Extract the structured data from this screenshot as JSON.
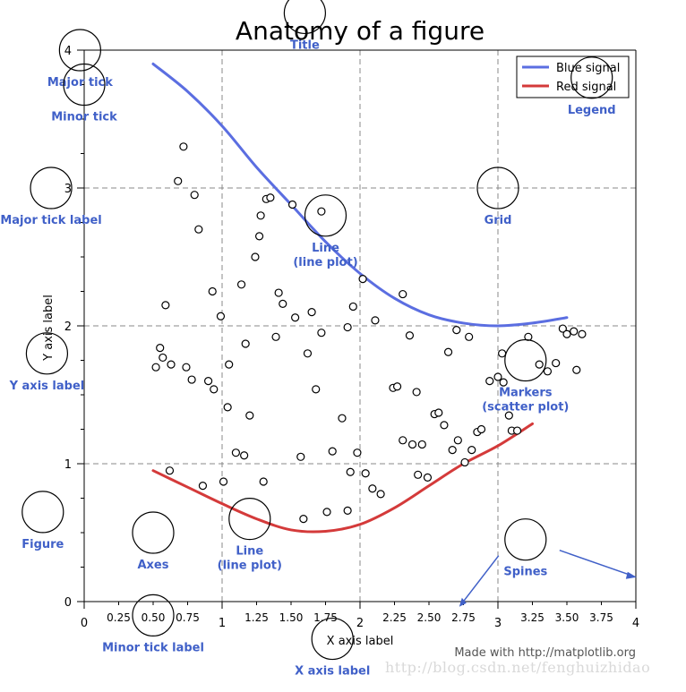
{
  "chart_data": {
    "type": "line",
    "title": "Anatomy of a figure",
    "xlabel": "X axis label",
    "ylabel": "Y axis label",
    "xlim": [
      0,
      4
    ],
    "ylim": [
      0,
      4
    ],
    "grid": true,
    "legend_position": "top-right",
    "major_ticks": [
      0,
      1,
      2,
      3,
      4
    ],
    "minor_ticks": [
      0.25,
      0.5,
      0.75,
      1.25,
      1.5,
      1.75,
      2.25,
      2.5,
      2.75,
      3.25,
      3.5,
      3.75
    ],
    "major_tick_labels": [
      "0",
      "1",
      "2",
      "3",
      "4"
    ],
    "minor_tick_labels": [
      "0.25",
      "0.50",
      "0.75",
      "1.25",
      "1.50",
      "1.75",
      "2.25",
      "2.50",
      "2.75",
      "3.25",
      "3.50",
      "3.75"
    ],
    "series": [
      {
        "name": "Blue signal",
        "kind": "line",
        "color": "#5b6ee1",
        "x": [
          0.5,
          0.75,
          1.0,
          1.25,
          1.5,
          1.75,
          2.0,
          2.25,
          2.5,
          2.75,
          3.0,
          3.25,
          3.5
        ],
        "y": [
          3.9,
          3.7,
          3.45,
          3.15,
          2.88,
          2.61,
          2.38,
          2.2,
          2.08,
          2.02,
          2.0,
          2.02,
          2.06
        ]
      },
      {
        "name": "Red signal",
        "kind": "line",
        "color": "#d43a3a",
        "x": [
          0.5,
          0.75,
          1.0,
          1.25,
          1.5,
          1.75,
          2.0,
          2.25,
          2.5,
          2.75,
          3.0,
          3.25
        ],
        "y": [
          0.95,
          0.83,
          0.71,
          0.6,
          0.52,
          0.51,
          0.56,
          0.68,
          0.84,
          1.0,
          1.13,
          1.29
        ]
      },
      {
        "name": "",
        "kind": "scatter",
        "points": [
          [
            0.72,
            3.3
          ],
          [
            0.68,
            3.05
          ],
          [
            0.8,
            2.95
          ],
          [
            0.83,
            2.7
          ],
          [
            0.59,
            2.15
          ],
          [
            0.55,
            1.84
          ],
          [
            0.52,
            1.7
          ],
          [
            0.57,
            1.77
          ],
          [
            0.63,
            1.72
          ],
          [
            0.74,
            1.7
          ],
          [
            0.78,
            1.61
          ],
          [
            0.9,
            1.6
          ],
          [
            0.94,
            1.54
          ],
          [
            0.93,
            2.25
          ],
          [
            0.99,
            2.07
          ],
          [
            1.04,
            1.41
          ],
          [
            1.14,
            2.3
          ],
          [
            1.17,
            1.87
          ],
          [
            1.2,
            1.35
          ],
          [
            1.24,
            2.5
          ],
          [
            1.28,
            2.8
          ],
          [
            1.32,
            2.92
          ],
          [
            1.35,
            2.93
          ],
          [
            1.27,
            2.65
          ],
          [
            1.39,
            1.92
          ],
          [
            1.41,
            2.24
          ],
          [
            1.44,
            2.16
          ],
          [
            1.51,
            2.88
          ],
          [
            1.53,
            2.06
          ],
          [
            1.62,
            1.8
          ],
          [
            1.65,
            2.1
          ],
          [
            1.68,
            1.54
          ],
          [
            1.72,
            1.95
          ],
          [
            1.72,
            2.83
          ],
          [
            1.87,
            1.33
          ],
          [
            1.91,
            1.99
          ],
          [
            1.95,
            2.14
          ],
          [
            2.02,
            2.34
          ],
          [
            2.11,
            2.04
          ],
          [
            2.24,
            1.55
          ],
          [
            2.27,
            1.56
          ],
          [
            2.31,
            2.23
          ],
          [
            2.36,
            1.93
          ],
          [
            2.41,
            1.52
          ],
          [
            0.62,
            0.95
          ],
          [
            0.86,
            0.84
          ],
          [
            1.01,
            0.87
          ],
          [
            1.05,
            1.72
          ],
          [
            1.1,
            1.08
          ],
          [
            1.16,
            1.06
          ],
          [
            1.3,
            0.87
          ],
          [
            1.57,
            1.05
          ],
          [
            1.59,
            0.6
          ],
          [
            1.76,
            0.65
          ],
          [
            1.8,
            1.09
          ],
          [
            1.91,
            0.66
          ],
          [
            1.93,
            0.94
          ],
          [
            1.98,
            1.08
          ],
          [
            2.04,
            0.93
          ],
          [
            2.09,
            0.82
          ],
          [
            2.15,
            0.78
          ],
          [
            2.31,
            1.17
          ],
          [
            2.38,
            1.14
          ],
          [
            2.42,
            0.92
          ],
          [
            2.45,
            1.14
          ],
          [
            2.49,
            0.9
          ],
          [
            2.54,
            1.36
          ],
          [
            2.57,
            1.37
          ],
          [
            2.61,
            1.28
          ],
          [
            2.64,
            1.81
          ],
          [
            2.67,
            1.1
          ],
          [
            2.7,
            1.97
          ],
          [
            2.71,
            1.17
          ],
          [
            2.76,
            1.01
          ],
          [
            2.79,
            1.92
          ],
          [
            2.81,
            1.1
          ],
          [
            2.85,
            1.23
          ],
          [
            2.88,
            1.25
          ],
          [
            2.94,
            1.6
          ],
          [
            3.0,
            1.63
          ],
          [
            3.03,
            1.8
          ],
          [
            3.04,
            1.59
          ],
          [
            3.08,
            1.35
          ],
          [
            3.1,
            1.24
          ],
          [
            3.14,
            1.24
          ],
          [
            3.22,
            1.92
          ],
          [
            3.3,
            1.72
          ],
          [
            3.36,
            1.67
          ],
          [
            3.42,
            1.73
          ],
          [
            3.47,
            1.98
          ],
          [
            3.5,
            1.94
          ],
          [
            3.55,
            1.96
          ],
          [
            3.61,
            1.94
          ],
          [
            3.57,
            1.68
          ]
        ]
      }
    ],
    "annotations": [
      {
        "label": "Title",
        "x": 1.6,
        "y": 4.27
      },
      {
        "label": "Major tick",
        "x": -0.03,
        "y": 4.0
      },
      {
        "label": "Minor tick",
        "x": 0.0,
        "y": 3.75
      },
      {
        "label": "Major tick label",
        "x": -0.24,
        "y": 3.0
      },
      {
        "label": "Grid",
        "x": 3.0,
        "y": 3.0
      },
      {
        "label": "Legend",
        "x": 3.68,
        "y": 3.8
      },
      {
        "label": "Line\n(line plot)",
        "x": 1.75,
        "y": 2.8
      },
      {
        "label": "Y axis label",
        "x": -0.27,
        "y": 1.8
      },
      {
        "label": "Markers\n(scatter plot)",
        "x": 3.2,
        "y": 1.75
      },
      {
        "label": "Figure",
        "x": -0.3,
        "y": 0.65
      },
      {
        "label": "Axes",
        "x": 0.5,
        "y": 0.5
      },
      {
        "label": "Line\n(line plot)",
        "x": 1.2,
        "y": 0.6
      },
      {
        "label": "Spines",
        "x": 3.2,
        "y": 0.45
      },
      {
        "label": "Minor tick label",
        "x": 0.5,
        "y": -0.1
      },
      {
        "label": "X axis label",
        "x": 1.8,
        "y": -0.27
      }
    ],
    "footer": "Made with http://matplotlib.org"
  },
  "watermark": "http://blog.csdn.net/fenghuizhidao"
}
